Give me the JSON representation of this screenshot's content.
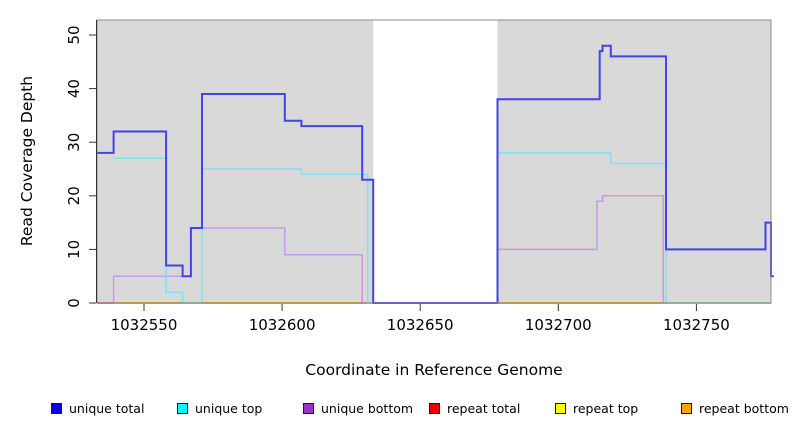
{
  "chart_data": {
    "type": "line",
    "subtype": "step-coverage",
    "title": "",
    "xlabel": "Coordinate in Reference Genome",
    "ylabel": "Read Coverage Depth",
    "xlim": [
      1032533,
      1032777
    ],
    "ylim": [
      0,
      52.8
    ],
    "x_ticks": [
      1032550,
      1032600,
      1032650,
      1032700,
      1032750
    ],
    "y_ticks": [
      0,
      10,
      20,
      30,
      40,
      50
    ],
    "grid": false,
    "plot_bg": "#d9d9d9",
    "gap_region": [
      1032633,
      1032678
    ],
    "shaded_regions": [
      [
        1032533,
        1032633
      ],
      [
        1032678,
        1032777
      ]
    ],
    "series": [
      {
        "name": "repeat total",
        "color": "#dd2222",
        "width": 1.5,
        "points": [
          [
            1032533,
            0
          ]
        ],
        "end": 1032777
      },
      {
        "name": "repeat top",
        "color": "#f2e400",
        "width": 1.5,
        "points": [
          [
            1032533,
            0
          ]
        ],
        "end": 1032777
      },
      {
        "name": "repeat bottom",
        "color": "#ff9d1c",
        "width": 2,
        "points": [
          [
            1032533,
            0
          ]
        ],
        "end": 1032739
      },
      {
        "name": "unique bottom",
        "color": "#c89ae4",
        "width": 1.5,
        "points": [
          [
            1032533,
            0
          ],
          [
            1032539,
            5
          ],
          [
            1032567,
            14
          ],
          [
            1032601,
            9
          ],
          [
            1032629,
            0
          ],
          [
            1032678,
            10
          ],
          [
            1032714,
            19
          ],
          [
            1032716,
            20
          ],
          [
            1032738,
            0
          ]
        ],
        "end": 1032777
      },
      {
        "name": "unique top",
        "color": "#7ee2f0",
        "width": 1.5,
        "points": [
          [
            1032539,
            27
          ],
          [
            1032558,
            2
          ],
          [
            1032564,
            0
          ],
          [
            1032571,
            25
          ],
          [
            1032607,
            24
          ],
          [
            1032631,
            0
          ],
          [
            1032678,
            28
          ],
          [
            1032719,
            26
          ],
          [
            1032739,
            0
          ]
        ],
        "end": 1032777
      },
      {
        "name": "unique total",
        "color": "#4343e8",
        "width": 2,
        "points": [
          [
            1032533,
            28
          ],
          [
            1032539,
            32
          ],
          [
            1032558,
            7
          ],
          [
            1032564,
            5
          ],
          [
            1032567,
            14
          ],
          [
            1032571,
            39
          ],
          [
            1032601,
            34
          ],
          [
            1032607,
            33
          ],
          [
            1032629,
            23
          ],
          [
            1032633,
            0
          ],
          [
            1032678,
            38
          ],
          [
            1032715,
            47
          ],
          [
            1032716,
            48
          ],
          [
            1032719,
            46
          ],
          [
            1032739,
            10
          ],
          [
            1032775,
            15
          ],
          [
            1032777,
            5
          ]
        ],
        "end": 1032778
      }
    ],
    "baseline_overlays": [
      {
        "color": "#df64c8",
        "from": 1032533,
        "to": 1032539
      },
      {
        "color": "#7edc9c",
        "from": 1032564,
        "to": 1032571
      },
      {
        "color": "#90dc90",
        "from": 1032739,
        "to": 1032777
      }
    ],
    "legend": [
      {
        "label": "unique total",
        "color": "#0000ee"
      },
      {
        "label": "unique top",
        "color": "#00ffff"
      },
      {
        "label": "unique bottom",
        "color": "#9932cc"
      },
      {
        "label": "repeat total",
        "color": "#ee0000"
      },
      {
        "label": "repeat top",
        "color": "#ffff00"
      },
      {
        "label": "repeat bottom",
        "color": "#ffa013"
      }
    ],
    "legend_position": "bottom"
  }
}
